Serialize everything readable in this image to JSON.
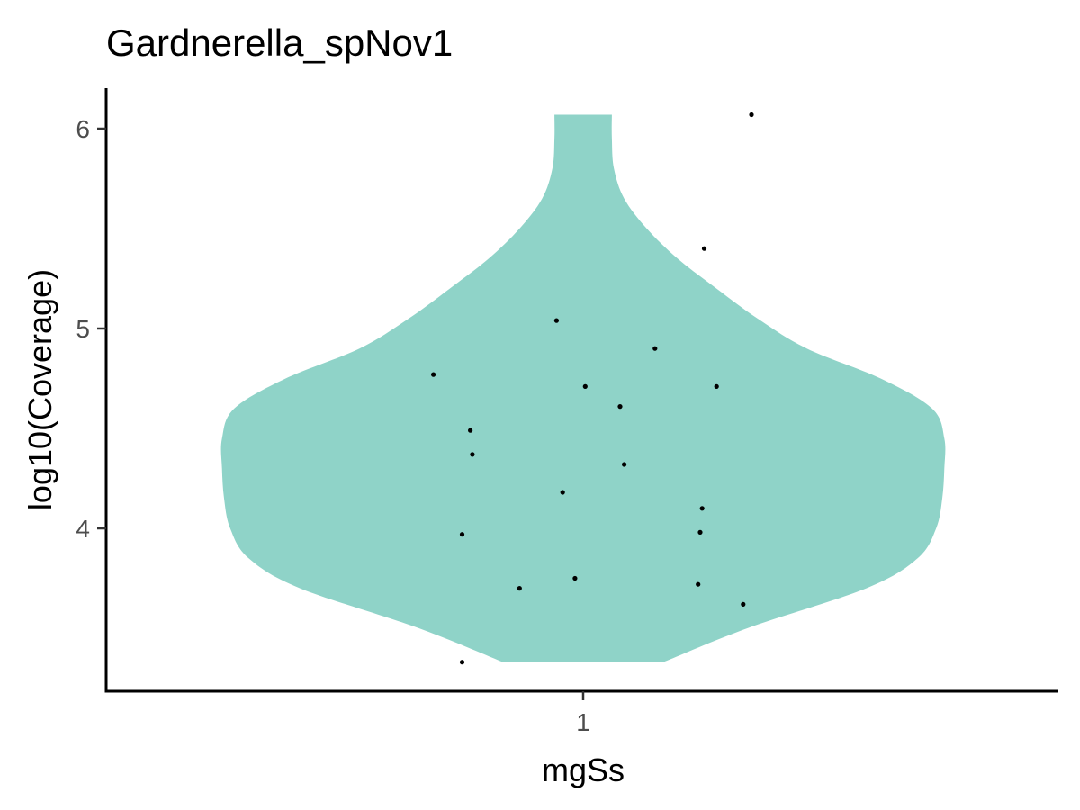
{
  "chart_data": {
    "type": "violin",
    "title": "Gardnerella_spNov1",
    "xlabel": "mgSs",
    "ylabel": "log10(Coverage)",
    "categories": [
      "1"
    ],
    "yticks": [
      "4",
      "5",
      "6"
    ],
    "ylim": [
      3.2,
      6.2
    ],
    "grid": false,
    "legend": "none",
    "violin_color": "#8fd3c8",
    "point_color": "#000000",
    "points": [
      {
        "x": 1.82,
        "y": 6.07
      },
      {
        "x": 1.59,
        "y": 5.4
      },
      {
        "x": 0.87,
        "y": 5.04
      },
      {
        "x": 1.35,
        "y": 4.9
      },
      {
        "x": 0.27,
        "y": 4.77
      },
      {
        "x": 1.01,
        "y": 4.71
      },
      {
        "x": 1.65,
        "y": 4.71
      },
      {
        "x": 1.18,
        "y": 4.61
      },
      {
        "x": 0.45,
        "y": 4.49
      },
      {
        "x": 0.46,
        "y": 4.37
      },
      {
        "x": 1.2,
        "y": 4.32
      },
      {
        "x": 0.9,
        "y": 4.18
      },
      {
        "x": 1.58,
        "y": 4.1
      },
      {
        "x": 1.57,
        "y": 3.98
      },
      {
        "x": 0.41,
        "y": 3.97
      },
      {
        "x": 0.96,
        "y": 3.75
      },
      {
        "x": 1.56,
        "y": 3.72
      },
      {
        "x": 0.69,
        "y": 3.7
      },
      {
        "x": 1.78,
        "y": 3.62
      },
      {
        "x": 0.41,
        "y": 3.33
      }
    ],
    "violin": {
      "y": [
        3.33,
        3.5,
        3.7,
        3.85,
        4.0,
        4.15,
        4.3,
        4.45,
        4.6,
        4.75,
        4.9,
        5.05,
        5.2,
        5.35,
        5.5,
        5.65,
        5.8,
        5.95,
        6.07
      ],
      "halfwidth": [
        0.39,
        0.8,
        1.38,
        1.63,
        1.72,
        1.75,
        1.76,
        1.76,
        1.7,
        1.45,
        1.09,
        0.85,
        0.65,
        0.46,
        0.31,
        0.2,
        0.15,
        0.14,
        0.14
      ]
    }
  }
}
